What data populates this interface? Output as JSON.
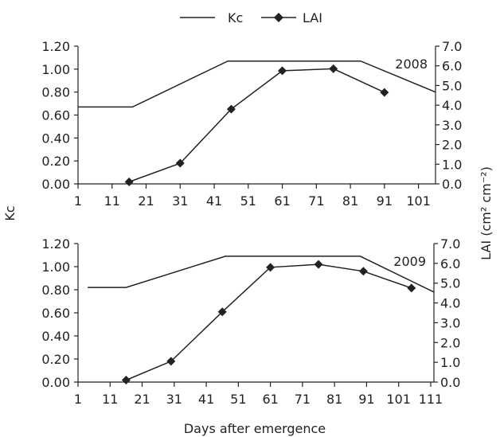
{
  "legend": {
    "kc_label": "Kc",
    "lai_label": "LAI",
    "placement": "top-center"
  },
  "colors": {
    "line": "#222222",
    "marker": "#222222",
    "background": "#ffffff"
  },
  "chart_data": [
    {
      "type": "line",
      "title": "2008",
      "xlabel": "Days after emergence",
      "ylabel": "Kc",
      "y2label": "LAI (cm² cm⁻²)",
      "xlim": [
        1,
        106
      ],
      "ylim": [
        0,
        1.2
      ],
      "y2lim": [
        0,
        7
      ],
      "grid": false,
      "xticks": [
        1,
        11,
        21,
        31,
        41,
        51,
        61,
        71,
        81,
        91,
        101
      ],
      "yticks": [
        "0.00",
        "0.20",
        "0.40",
        "0.60",
        "0.80",
        "1.00",
        "1.20"
      ],
      "y2ticks": [
        "0.0",
        "1.0",
        "2.0",
        "3.0",
        "4.0",
        "5.0",
        "6.0",
        "7.0"
      ],
      "series": [
        {
          "name": "Kc",
          "axis": "left",
          "marker": "none",
          "x": [
            1,
            17,
            45,
            84,
            106
          ],
          "y": [
            0.67,
            0.67,
            1.07,
            1.07,
            0.8
          ]
        },
        {
          "name": "LAI",
          "axis": "right",
          "marker": "diamond",
          "x": [
            16,
            31,
            46,
            61,
            76,
            91
          ],
          "y": [
            0.1,
            1.05,
            3.8,
            5.75,
            5.85,
            4.65
          ]
        }
      ]
    },
    {
      "type": "line",
      "title": "2009",
      "xlabel": "Days after emergence",
      "ylabel": "Kc",
      "y2label": "LAI (cm² cm⁻²)",
      "xlim": [
        1,
        112
      ],
      "ylim": [
        0,
        1.2
      ],
      "y2lim": [
        0,
        7
      ],
      "grid": false,
      "xticks": [
        1,
        11,
        21,
        31,
        41,
        51,
        61,
        71,
        81,
        91,
        101,
        111
      ],
      "yticks": [
        "0.00",
        "0.20",
        "0.40",
        "0.60",
        "0.80",
        "1.00",
        "1.20"
      ],
      "y2ticks": [
        "0.0",
        "1.0",
        "2.0",
        "3.0",
        "4.0",
        "5.0",
        "6.0",
        "7.0"
      ],
      "series": [
        {
          "name": "Kc",
          "axis": "left",
          "marker": "none",
          "x": [
            4,
            16,
            47,
            89,
            112
          ],
          "y": [
            0.82,
            0.82,
            1.09,
            1.09,
            0.78
          ]
        },
        {
          "name": "LAI",
          "axis": "right",
          "marker": "diamond",
          "x": [
            16,
            30,
            46,
            61,
            76,
            90,
            105
          ],
          "y": [
            0.1,
            1.05,
            3.55,
            5.8,
            5.95,
            5.6,
            4.75
          ]
        }
      ]
    }
  ]
}
